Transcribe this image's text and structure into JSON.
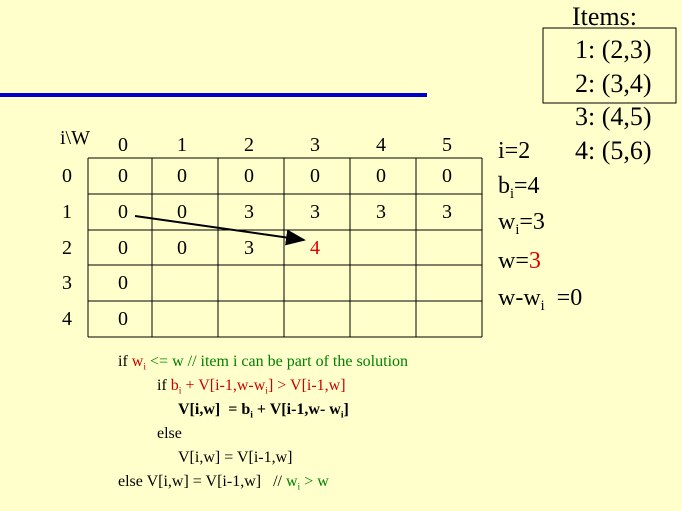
{
  "items": {
    "title": "Items:",
    "list": [
      "1: (2,3)",
      "2: (3,4)",
      "3: (4,5)",
      "4: (5,6)"
    ]
  },
  "table": {
    "corner": "i\\W",
    "columns": [
      "0",
      "1",
      "2",
      "3",
      "4",
      "5"
    ],
    "rows": [
      {
        "label": "0",
        "cells": [
          "0",
          "0",
          "0",
          "0",
          "0",
          "0"
        ]
      },
      {
        "label": "1",
        "cells": [
          "0",
          "0",
          "3",
          "3",
          "3",
          "3"
        ]
      },
      {
        "label": "2",
        "cells": [
          "0",
          "0",
          "3",
          {
            "text": "4",
            "color": "#e00000"
          }
        ]
      },
      {
        "label": "3",
        "cells": [
          "0"
        ]
      },
      {
        "label": "4",
        "cells": [
          "0"
        ]
      }
    ]
  },
  "vars": [
    {
      "segments": [
        {
          "text": "i=2"
        }
      ]
    },
    {
      "segments": [
        {
          "text": "b"
        },
        {
          "sub": "i"
        },
        {
          "text": "=4"
        }
      ]
    },
    {
      "segments": [
        {
          "text": "w"
        },
        {
          "sub": "i"
        },
        {
          "text": "=3"
        }
      ]
    },
    {
      "segments": [
        {
          "text": "w="
        },
        {
          "text": "3",
          "color": "#e00000"
        }
      ]
    },
    {
      "segments": [
        {
          "text": "w-w"
        },
        {
          "sub": "i"
        },
        {
          "text": "  =0"
        }
      ]
    }
  ],
  "code": [
    {
      "segments": [
        {
          "text": "if "
        },
        {
          "text": "w",
          "color": "#cc0000"
        },
        {
          "sub": "i",
          "color": "#cc0000"
        },
        {
          "text": " <= w // item i can be part of the solution",
          "color": "#008000"
        }
      ]
    },
    {
      "segments": [
        {
          "text": "if "
        },
        {
          "text": "b",
          "color": "#cc0000"
        },
        {
          "sub": "i",
          "color": "#cc0000"
        },
        {
          "text": " + V[i-1,w-w",
          "color": "#cc0000"
        },
        {
          "sub": "i",
          "color": "#cc0000"
        },
        {
          "text": "] > V[i-1,w]",
          "color": "#cc0000"
        }
      ]
    },
    {
      "bold": true,
      "segments": [
        {
          "text": "V[i,w]  = b"
        },
        {
          "sub": "i"
        },
        {
          "text": " + V[i-1,w- w"
        },
        {
          "sub": "i"
        },
        {
          "text": "]"
        }
      ]
    },
    {
      "segments": [
        {
          "text": "else"
        }
      ]
    },
    {
      "segments": [
        {
          "text": "V[i,w] = V[i-1,w]"
        }
      ]
    },
    {
      "segments": [
        {
          "text": "else V[i,w] = V[i-1,w]   // "
        },
        {
          "text": "w",
          "color": "#008000"
        },
        {
          "sub": "i",
          "color": "#008000"
        },
        {
          "text": " > w",
          "color": "#008000"
        }
      ]
    }
  ]
}
